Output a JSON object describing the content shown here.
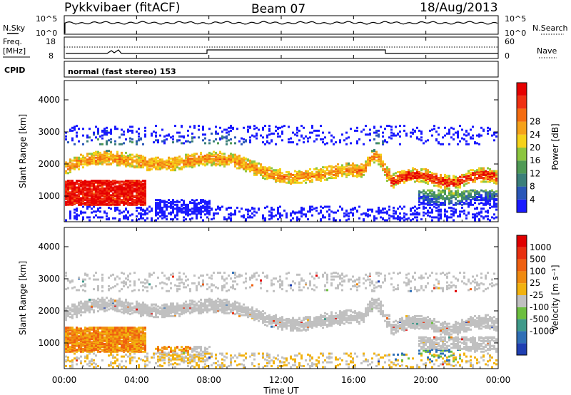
{
  "header": {
    "title": "Pykkvibaer (fitACF)",
    "beam": "Beam 07",
    "date": "18/Aug/2013"
  },
  "panels": {
    "nsky_label": "N.Sky",
    "nsky_ticks": [
      "10^5",
      "10^0"
    ],
    "nsearch_label": "N.Search",
    "nsearch_ticks": [
      "10^5",
      "10^0"
    ],
    "freq_label_1": "Freq.",
    "freq_label_2": "[MHz]",
    "freq_ticks": [
      "18",
      "8"
    ],
    "nave_label": "Nave",
    "nave_ticks": [
      "60",
      "0"
    ],
    "cpid_label": "CPID",
    "cpid_text": "normal (fast stereo) 153"
  },
  "chart_data": [
    {
      "type": "heatmap",
      "name": "power",
      "ylabel": "Slant Range [km]",
      "yticks": [
        1000,
        2000,
        3000,
        4000
      ],
      "ylim": [
        200,
        4600
      ],
      "colorbar_label": "Power [dB]",
      "colorbar_ticks": [
        "4",
        "8",
        "12",
        "16",
        "20",
        "24",
        "28"
      ],
      "colors": [
        "#1a1aff",
        "#2a57b8",
        "#3b7f7a",
        "#4f9a55",
        "#8cc63f",
        "#f5d21a",
        "#f5a21a",
        "#f46c10",
        "#ef3012",
        "#e60000"
      ]
    },
    {
      "type": "heatmap",
      "name": "velocity",
      "ylabel": "Slant Range [km]",
      "yticks": [
        1000,
        2000,
        3000,
        4000
      ],
      "ylim": [
        200,
        4600
      ],
      "colorbar_label": "Velocity [m s⁻¹]",
      "colorbar_ticks": [
        "1000",
        "500",
        "100",
        "25",
        "-25",
        "-100",
        "-500",
        "-1000"
      ],
      "colors": [
        "#1f3fb2",
        "#2f6fb6",
        "#3f9a8a",
        "#6cbf3f",
        "#c0c0c0",
        "#f2b20f",
        "#f08a10",
        "#ef6010",
        "#e83010",
        "#e00000"
      ]
    }
  ],
  "xaxis": {
    "label": "Time UT",
    "ticks": [
      "00:00",
      "04:00",
      "08:00",
      "12:00",
      "16:00",
      "20:00",
      "00:00"
    ]
  }
}
